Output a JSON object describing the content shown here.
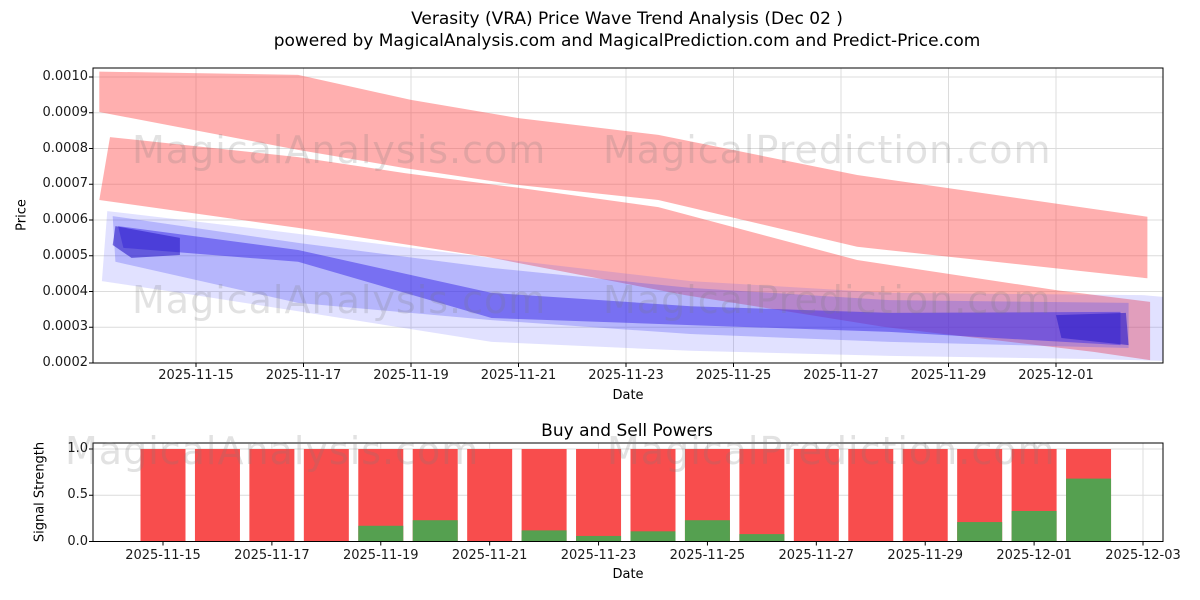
{
  "title": "Verasity (VRA) Price Wave Trend Analysis (Dec 02 )",
  "subtitle": "powered by MagicalAnalysis.com and MagicalPrediction.com and Predict-Price.com",
  "watermarks": {
    "analysis": "MagicalAnalysis.com",
    "prediction": "MagicalPrediction.com"
  },
  "chart_data": [
    {
      "id": "price-wave",
      "type": "area",
      "title": "Verasity (VRA) Price Wave Trend Analysis (Dec 02 )",
      "xlabel": "Date",
      "ylabel": "Price",
      "x_range": [
        "2025-11-13",
        "2025-12-03"
      ],
      "ylim": [
        0.0002,
        0.001025
      ],
      "grid": true,
      "x_ticks": [
        "2025-11-15",
        "2025-11-17",
        "2025-11-19",
        "2025-11-21",
        "2025-11-23",
        "2025-11-25",
        "2025-11-27",
        "2025-11-29",
        "2025-12-01"
      ],
      "y_ticks": [
        "0.0002",
        "0.0003",
        "0.0004",
        "0.0005",
        "0.0006",
        "0.0007",
        "0.0008",
        "0.0009",
        "0.0010"
      ],
      "day0_date": "2025-11-13",
      "bands": [
        {
          "name": "red-trend-band-upper",
          "color": "#ff4040",
          "opacity": 0.42,
          "points_day_price": [
            [
              0.2,
              0.001015
            ],
            [
              3.9,
              0.001006
            ],
            [
              6.0,
              0.000936
            ],
            [
              8.0,
              0.000885
            ],
            [
              10.6,
              0.000838
            ],
            [
              14.3,
              0.000726
            ],
            [
              19.7,
              0.000609
            ],
            [
              19.7,
              0.000437
            ],
            [
              14.3,
              0.000525
            ],
            [
              10.6,
              0.000656
            ],
            [
              8.0,
              0.000698
            ],
            [
              5.9,
              0.000745
            ],
            [
              3.9,
              0.000796
            ],
            [
              0.2,
              0.000902
            ]
          ]
        },
        {
          "name": "red-trend-band-lower",
          "color": "#ff4040",
          "opacity": 0.42,
          "points_day_price": [
            [
              0.4,
              0.000832
            ],
            [
              3.9,
              0.000776
            ],
            [
              5.9,
              0.000731
            ],
            [
              8.0,
              0.00069
            ],
            [
              10.6,
              0.000636
            ],
            [
              14.3,
              0.000488
            ],
            [
              18.0,
              0.000404
            ],
            [
              19.75,
              0.000371
            ],
            [
              19.75,
              0.000208
            ],
            [
              18.7,
              0.000231
            ],
            [
              14.8,
              0.000301
            ],
            [
              11.1,
              0.00039
            ],
            [
              7.4,
              0.000497
            ],
            [
              3.9,
              0.000578
            ],
            [
              0.2,
              0.000656
            ]
          ]
        },
        {
          "name": "blue-wave-outer",
          "color": "#5050ff",
          "opacity": 0.17,
          "points_day_price": [
            [
              0.35,
              0.000625
            ],
            [
              3.0,
              0.000578
            ],
            [
              7.5,
              0.000494
            ],
            [
              11.2,
              0.000429
            ],
            [
              14.9,
              0.000396
            ],
            [
              19.6,
              0.00039
            ],
            [
              20.0,
              0.000385
            ],
            [
              20.0,
              0.000206
            ],
            [
              18.8,
              0.000211
            ],
            [
              14.9,
              0.00022
            ],
            [
              11.2,
              0.000234
            ],
            [
              7.5,
              0.000259
            ],
            [
              3.9,
              0.000345
            ],
            [
              2.1,
              0.000387
            ],
            [
              0.25,
              0.000429
            ]
          ]
        },
        {
          "name": "blue-wave-mid",
          "color": "#4848f5",
          "opacity": 0.28,
          "points_day_price": [
            [
              0.45,
              0.000611
            ],
            [
              3.9,
              0.000536
            ],
            [
              7.5,
              0.000466
            ],
            [
              11.2,
              0.00041
            ],
            [
              14.9,
              0.000376
            ],
            [
              19.35,
              0.000368
            ],
            [
              19.35,
              0.000242
            ],
            [
              14.9,
              0.000259
            ],
            [
              11.2,
              0.000281
            ],
            [
              7.5,
              0.00032
            ],
            [
              3.9,
              0.000368
            ],
            [
              0.5,
              0.000483
            ]
          ]
        },
        {
          "name": "blue-wave-core",
          "color": "#3a2ae8",
          "opacity": 0.5,
          "points_day_price": [
            [
              0.55,
              0.000583
            ],
            [
              3.9,
              0.000516
            ],
            [
              7.5,
              0.000396
            ],
            [
              11.2,
              0.000359
            ],
            [
              14.9,
              0.00034
            ],
            [
              19.2,
              0.000343
            ],
            [
              19.2,
              0.00025
            ],
            [
              14.9,
              0.000287
            ],
            [
              11.2,
              0.000306
            ],
            [
              7.5,
              0.000326
            ],
            [
              3.9,
              0.000483
            ],
            [
              0.65,
              0.000522
            ]
          ]
        },
        {
          "name": "blue-core-left-blob",
          "color": "#2d1cc8",
          "opacity": 0.6,
          "points_day_price": [
            [
              0.5,
              0.000583
            ],
            [
              1.7,
              0.00055
            ],
            [
              1.7,
              0.000502
            ],
            [
              0.8,
              0.000494
            ],
            [
              0.45,
              0.00053
            ]
          ]
        },
        {
          "name": "blue-core-right-blob",
          "color": "#2d1cc8",
          "opacity": 0.6,
          "points_day_price": [
            [
              18.0,
              0.000334
            ],
            [
              19.3,
              0.00034
            ],
            [
              19.35,
              0.00025
            ],
            [
              18.1,
              0.00027
            ]
          ]
        }
      ]
    },
    {
      "id": "buy-sell-powers",
      "type": "bar",
      "title": "Buy and Sell Powers",
      "xlabel": "Date",
      "ylabel": "Signal Strength",
      "ylim": [
        0,
        1.065
      ],
      "grid": true,
      "x_ticks": [
        "2025-11-15",
        "2025-11-17",
        "2025-11-19",
        "2025-11-21",
        "2025-11-23",
        "2025-11-25",
        "2025-11-27",
        "2025-11-29",
        "2025-12-01",
        "2025-12-03"
      ],
      "y_ticks": [
        "0.0",
        "0.5",
        "1.0"
      ],
      "categories": [
        "2025-11-15",
        "2025-11-16",
        "2025-11-17",
        "2025-11-18",
        "2025-11-19",
        "2025-11-20",
        "2025-11-21",
        "2025-11-22",
        "2025-11-23",
        "2025-11-24",
        "2025-11-25",
        "2025-11-26",
        "2025-11-27",
        "2025-11-28",
        "2025-11-29",
        "2025-11-30",
        "2025-12-01",
        "2025-12-02"
      ],
      "series": [
        {
          "name": "Sell",
          "color": "#f84d4d",
          "values": [
            1,
            1,
            1,
            1,
            0.83,
            0.77,
            1,
            0.88,
            0.94,
            0.89,
            0.77,
            0.92,
            1,
            1,
            1,
            0.79,
            0.67,
            0.32
          ]
        },
        {
          "name": "Buy",
          "color": "#55a050",
          "values": [
            0,
            0,
            0,
            0,
            0.17,
            0.23,
            0,
            0.12,
            0.06,
            0.11,
            0.23,
            0.08,
            0,
            0,
            0,
            0.21,
            0.33,
            0.68
          ]
        }
      ]
    }
  ]
}
